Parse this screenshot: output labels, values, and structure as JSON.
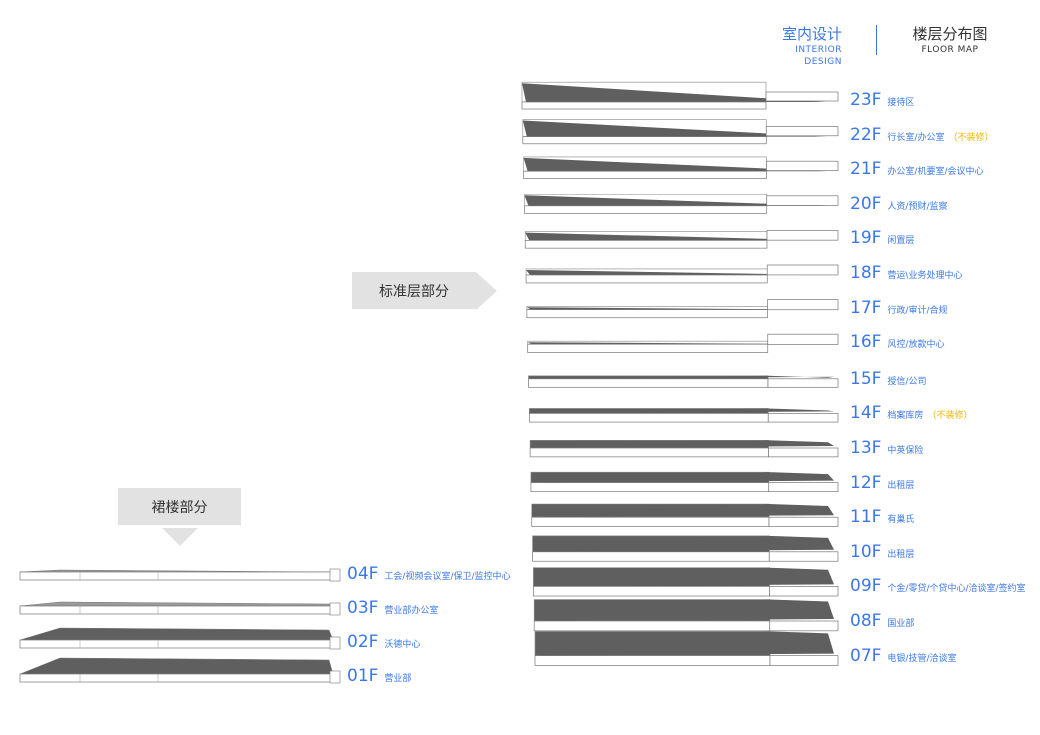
{
  "header": {
    "interior_cn": "室内设计",
    "interior_en": "INTERIOR DESIGN",
    "floormap_cn": "楼层分布图",
    "floormap_en": "FLOOR MAP"
  },
  "sections": {
    "standard": "标准层部分",
    "podium": "裙楼部分"
  },
  "colors": {
    "accent": "#3b78e7",
    "note": "#f0b400",
    "slab_dark": "#5f5f5f",
    "slab_light": "#ffffff",
    "tag_bg": "#e2e2e2"
  },
  "tower_floors": [
    {
      "floor": "23F",
      "desc": "接待区",
      "note": ""
    },
    {
      "floor": "22F",
      "desc": "行长室/办公室",
      "note": "（不装修）"
    },
    {
      "floor": "21F",
      "desc": "办公室/机要室/会议中心",
      "note": ""
    },
    {
      "floor": "20F",
      "desc": "人资/预财/监察",
      "note": ""
    },
    {
      "floor": "19F",
      "desc": "闲置层",
      "note": ""
    },
    {
      "floor": "18F",
      "desc": "营运\\业务处理中心",
      "note": ""
    },
    {
      "floor": "17F",
      "desc": "行政/审计/合规",
      "note": ""
    },
    {
      "floor": "16F",
      "desc": "风控/放款中心",
      "note": ""
    },
    {
      "floor": "15F",
      "desc": "授信/公司",
      "note": ""
    },
    {
      "floor": "14F",
      "desc": "档案库房",
      "note": "（不装修）"
    },
    {
      "floor": "13F",
      "desc": "中英保险",
      "note": ""
    },
    {
      "floor": "12F",
      "desc": "出租层",
      "note": ""
    },
    {
      "floor": "11F",
      "desc": "有巢氏",
      "note": ""
    },
    {
      "floor": "10F",
      "desc": "出租层",
      "note": ""
    },
    {
      "floor": "09F",
      "desc": "个金/零贷/个贷中心/洽谈室/签约室",
      "note": ""
    },
    {
      "floor": "08F",
      "desc": "国业部",
      "note": ""
    },
    {
      "floor": "07F",
      "desc": "电银/技管/洽谈室",
      "note": ""
    }
  ],
  "podium_floors": [
    {
      "floor": "04F",
      "desc": "工会/视频会议室/保卫/监控中心",
      "note": ""
    },
    {
      "floor": "03F",
      "desc": "营业部办公室",
      "note": ""
    },
    {
      "floor": "02F",
      "desc": "沃德中心",
      "note": ""
    },
    {
      "floor": "01F",
      "desc": "营业部",
      "note": ""
    }
  ]
}
